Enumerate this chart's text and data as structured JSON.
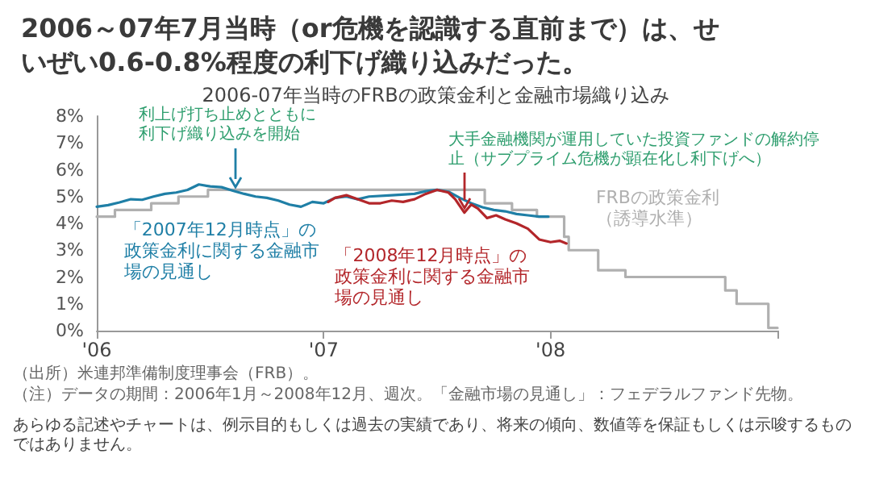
{
  "chart_data": {
    "type": "line",
    "title": "2006～07年7月当時（or危機を認識する直前まで）は、せいぜい0.6-0.8%程度の利下げ織り込みだった。",
    "subtitle": "2006-07年当時のFRBの政策金利と金融市場織り込み",
    "xlim": [
      2006,
      2009
    ],
    "xticks": [
      {
        "value": 2006,
        "label": "'06"
      },
      {
        "value": 2007,
        "label": "'07"
      },
      {
        "value": 2008,
        "label": "'08"
      },
      {
        "value": 2009,
        "label": null
      }
    ],
    "ylim": [
      0,
      8
    ],
    "yticks": [
      {
        "value": 0,
        "label": "0%"
      },
      {
        "value": 1,
        "label": "1%"
      },
      {
        "value": 2,
        "label": "2%"
      },
      {
        "value": 3,
        "label": "3%"
      },
      {
        "value": 4,
        "label": "4%"
      },
      {
        "value": 5,
        "label": "5%"
      },
      {
        "value": 6,
        "label": "6%"
      },
      {
        "value": 7,
        "label": "7%"
      },
      {
        "value": 8,
        "label": "8%"
      }
    ],
    "grid": false,
    "legend": false,
    "marker": "none",
    "line_style": "solid",
    "series": [
      {
        "name": "FRBの政策金利（誘導水準）",
        "type": "step",
        "color": "#b0b0b0",
        "x": [
          2006.0,
          2006.08,
          2006.24,
          2006.36,
          2006.49,
          2007.71,
          2007.83,
          2007.94,
          2008.06,
          2008.08,
          2008.21,
          2008.33,
          2008.77,
          2008.82,
          2008.96,
          2009.0
        ],
        "values": [
          4.25,
          4.5,
          4.75,
          5.0,
          5.25,
          4.75,
          4.5,
          4.25,
          3.5,
          3.0,
          2.25,
          2.0,
          1.5,
          1.0,
          0.1,
          0.1
        ]
      },
      {
        "name": "「2007年12月時点」の政策金利に関する金融市場の見通し",
        "color": "#1f7fa6",
        "x": [
          2006.0,
          2006.05,
          2006.1,
          2006.15,
          2006.2,
          2006.25,
          2006.3,
          2006.35,
          2006.4,
          2006.45,
          2006.5,
          2006.55,
          2006.6,
          2006.65,
          2006.7,
          2006.75,
          2006.8,
          2006.85,
          2006.9,
          2006.95,
          2007.0,
          2007.05,
          2007.1,
          2007.15,
          2007.2,
          2007.3,
          2007.4,
          2007.45,
          2007.5,
          2007.55,
          2007.6,
          2007.65,
          2007.7,
          2007.75,
          2007.8,
          2007.85,
          2007.9,
          2007.95,
          2007.99
        ],
        "values": [
          4.62,
          4.68,
          4.78,
          4.9,
          4.88,
          5.0,
          5.1,
          5.15,
          5.25,
          5.45,
          5.38,
          5.35,
          5.22,
          5.1,
          5.0,
          4.95,
          4.85,
          4.7,
          4.62,
          4.8,
          4.75,
          4.95,
          5.0,
          4.9,
          5.0,
          5.05,
          5.1,
          5.2,
          5.25,
          5.18,
          4.95,
          4.75,
          4.6,
          4.5,
          4.45,
          4.35,
          4.3,
          4.25,
          4.25
        ]
      },
      {
        "name": "「2008年12月時点」の政策金利に関する金融市場の見通し",
        "color": "#b3262a",
        "x": [
          2007.02,
          2007.05,
          2007.1,
          2007.15,
          2007.2,
          2007.25,
          2007.3,
          2007.35,
          2007.4,
          2007.45,
          2007.5,
          2007.55,
          2007.58,
          2007.62,
          2007.65,
          2007.68,
          2007.72,
          2007.76,
          2007.8,
          2007.85,
          2007.9,
          2007.95,
          2008.0,
          2008.04,
          2008.07
        ],
        "values": [
          4.8,
          4.95,
          5.05,
          4.9,
          4.75,
          4.75,
          4.85,
          4.8,
          4.9,
          5.1,
          5.25,
          5.15,
          4.9,
          4.4,
          4.7,
          4.55,
          4.2,
          4.3,
          4.15,
          4.0,
          3.8,
          3.4,
          3.3,
          3.35,
          3.25
        ]
      }
    ],
    "annotations": [
      {
        "text": "利上げ打ち止めとともに利下げ織り込みを開始",
        "x": 2006.61,
        "y": 5.25
      },
      {
        "text": "大手金融機関が運用していた投資ファンドの解約停止（サブプライム危機が顕在化し利下げへ）",
        "x": 2007.62,
        "y": 4.45
      },
      "（出所）米連邦準備制度理事会（FRB）。",
      "（注）データの期間：2006年1月～2008年12月、週次。「金融市場の見通し」：フェデラルファンド先物。",
      "あらゆる記述やチャートは、例示目的もしくは過去の実績であり、将来の傾向、数値等を保証もしくは示唆するものではありません。"
    ]
  }
}
